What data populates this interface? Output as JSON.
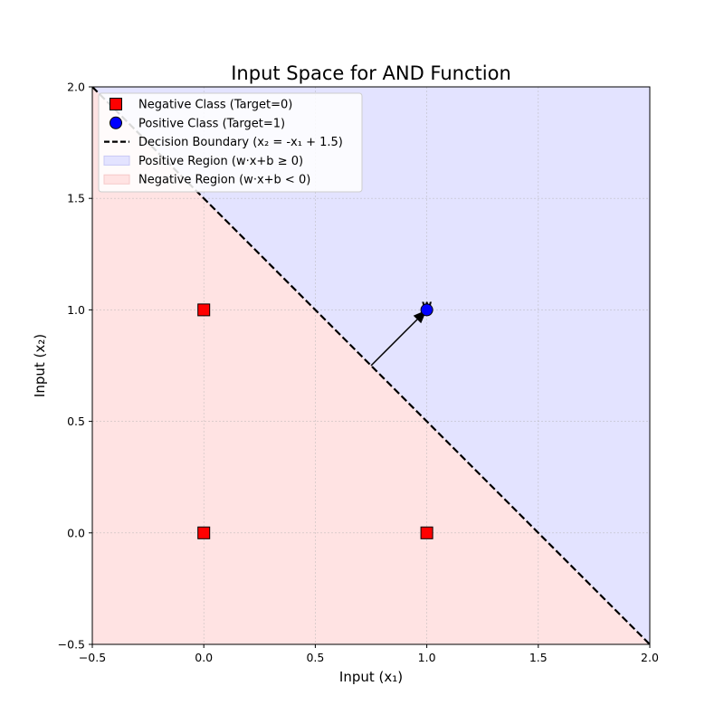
{
  "chart_data": {
    "type": "scatter",
    "title": "Input Space for AND Function",
    "xlabel": "Input (x₁)",
    "ylabel": "Input (x₂)",
    "xlim": [
      -0.5,
      2.0
    ],
    "ylim": [
      -0.5,
      2.0
    ],
    "xticks": [
      "−0.5",
      "0.0",
      "0.5",
      "1.0",
      "1.5",
      "2.0"
    ],
    "yticks": [
      "−0.5",
      "0.0",
      "0.5",
      "1.0",
      "1.5",
      "2.0"
    ],
    "xtick_values": [
      -0.5,
      0.0,
      0.5,
      1.0,
      1.5,
      2.0
    ],
    "ytick_values": [
      -0.5,
      0.0,
      0.5,
      1.0,
      1.5,
      2.0
    ],
    "grid": true,
    "legend_position": "top-left",
    "series": [
      {
        "name": "Negative Class (Target=0)",
        "marker": "square",
        "color": "#ff0000",
        "points": [
          [
            0,
            0
          ],
          [
            0,
            1
          ],
          [
            1,
            0
          ]
        ]
      },
      {
        "name": "Positive Class (Target=1)",
        "marker": "circle",
        "color": "#0000ff",
        "points": [
          [
            1,
            1
          ]
        ]
      }
    ],
    "boundary": {
      "name": "Decision Boundary (x₂ = -x₁ + 1.5)",
      "slope": -1,
      "intercept": 1.5,
      "color": "#000000"
    },
    "regions": [
      {
        "name": "Positive Region (w·x+b ≥ 0)",
        "color": "#e3e3ff"
      },
      {
        "name": "Negative Region (w·x+b < 0)",
        "color": "#ffe3e3"
      }
    ],
    "weight_vector": {
      "label": "w",
      "from": [
        0.75,
        0.75
      ],
      "to": [
        1.0,
        1.0
      ]
    }
  }
}
